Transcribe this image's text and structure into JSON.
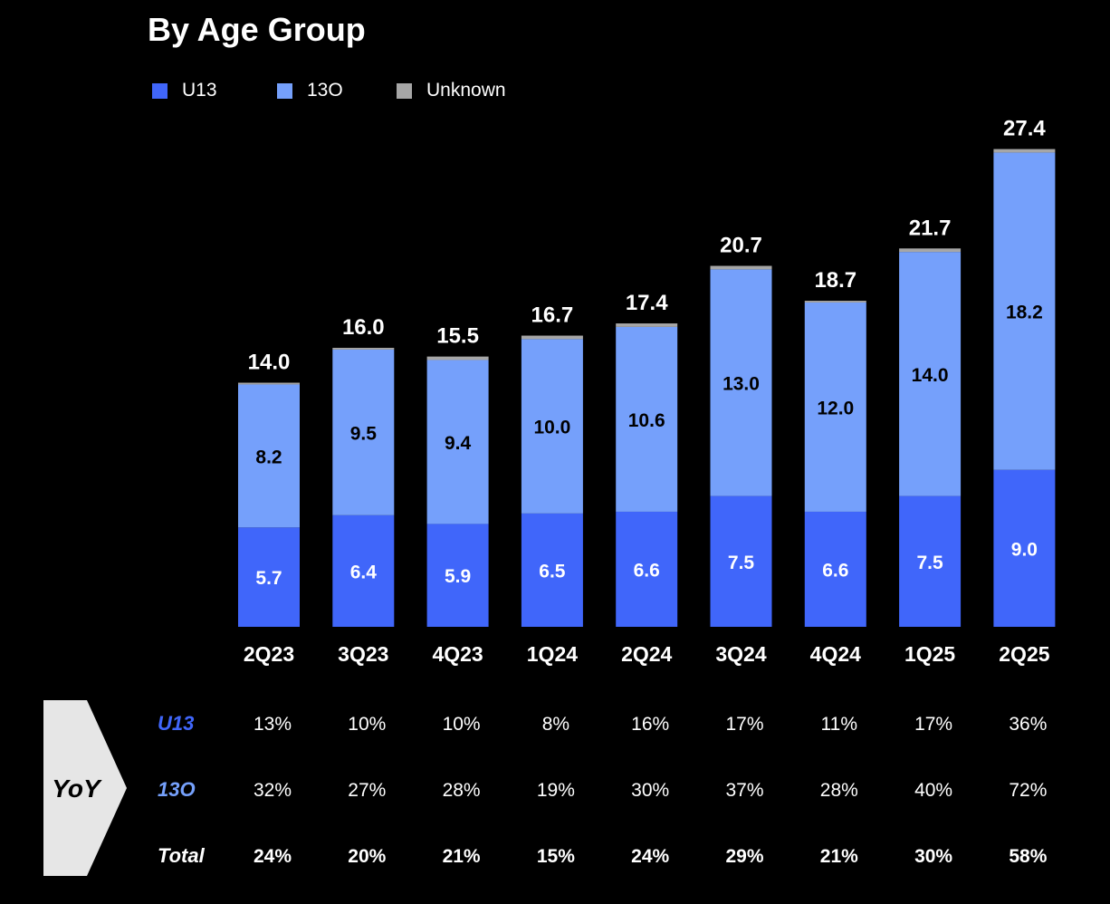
{
  "chart_data": {
    "type": "bar",
    "stacked": true,
    "title": "By Age Group",
    "categories": [
      "2Q23",
      "3Q23",
      "4Q23",
      "1Q24",
      "2Q24",
      "3Q24",
      "4Q24",
      "1Q25",
      "2Q25"
    ],
    "series": [
      {
        "name": "U13",
        "color": "#4066fa",
        "label_color": "#ffffff",
        "values": [
          5.7,
          6.4,
          5.9,
          6.5,
          6.6,
          7.5,
          6.6,
          7.5,
          9.0
        ]
      },
      {
        "name": "13O",
        "color": "#75a0fb",
        "label_color": "#000000",
        "values": [
          8.2,
          9.5,
          9.4,
          10.0,
          10.6,
          13.0,
          12.0,
          14.0,
          18.2
        ]
      },
      {
        "name": "Unknown",
        "color": "#a6a6a6",
        "label_color": "",
        "values": [
          0.1,
          0.1,
          0.2,
          0.2,
          0.2,
          0.2,
          0.1,
          0.2,
          0.2
        ]
      }
    ],
    "totals": [
      "14.0",
      "16.0",
      "15.5",
      "16.7",
      "17.4",
      "20.7",
      "18.7",
      "21.7",
      "27.4"
    ],
    "legend_position": "top-left",
    "grid": false
  },
  "yoy_table": {
    "label": "YoY",
    "rows": [
      {
        "label": "U13",
        "label_color": "#4066fa",
        "bold": false,
        "values": [
          "13%",
          "10%",
          "10%",
          "8%",
          "16%",
          "17%",
          "11%",
          "17%",
          "36%"
        ]
      },
      {
        "label": "13O",
        "label_color": "#75a0fb",
        "bold": false,
        "values": [
          "32%",
          "27%",
          "28%",
          "19%",
          "30%",
          "37%",
          "28%",
          "40%",
          "72%"
        ]
      },
      {
        "label": "Total",
        "label_color": "#ffffff",
        "bold": true,
        "values": [
          "24%",
          "20%",
          "21%",
          "15%",
          "24%",
          "29%",
          "21%",
          "30%",
          "58%"
        ]
      }
    ]
  }
}
